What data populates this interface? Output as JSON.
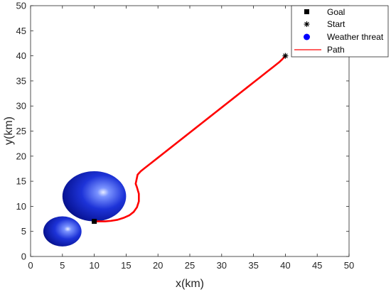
{
  "chart_data": {
    "type": "line",
    "title": "",
    "xlabel": "x(km)",
    "ylabel": "y(km)",
    "xlim": [
      0,
      50
    ],
    "ylim": [
      0,
      50
    ],
    "xticks": [
      "0",
      "5",
      "10",
      "15",
      "20",
      "25",
      "30",
      "35",
      "40",
      "45",
      "50"
    ],
    "yticks": [
      "0",
      "5",
      "10",
      "15",
      "20",
      "25",
      "30",
      "35",
      "40",
      "45",
      "50"
    ],
    "grid": false,
    "legend_position": "top-right",
    "legend": [
      {
        "label": "Goal",
        "marker": "square"
      },
      {
        "label": "Start",
        "marker": "asterisk"
      },
      {
        "label": "Weather threat",
        "marker": "circle"
      },
      {
        "label": "Path",
        "marker": "line"
      }
    ],
    "goal": {
      "x": 10,
      "y": 7
    },
    "start": {
      "x": 40,
      "y": 40
    },
    "threats": [
      {
        "cx": 10,
        "cy": 12,
        "r": 5
      },
      {
        "cx": 5,
        "cy": 5,
        "r": 3
      }
    ],
    "path": {
      "x": [
        40,
        39.5,
        39,
        38,
        37,
        36,
        35,
        34,
        33,
        32,
        31,
        30,
        29,
        28,
        27,
        26,
        25,
        24,
        23,
        22,
        21,
        20,
        19,
        18,
        17.3,
        16.8,
        16.5,
        16.7,
        17,
        17,
        16.7,
        16.2,
        15.5,
        14.6,
        13.6,
        12.6,
        11.7,
        11,
        10
      ],
      "y": [
        40,
        39.3,
        38.7,
        37.7,
        36.7,
        35.7,
        34.7,
        33.7,
        32.7,
        31.7,
        30.7,
        29.7,
        28.7,
        27.7,
        26.7,
        25.7,
        24.7,
        23.7,
        22.7,
        21.7,
        20.7,
        19.7,
        18.7,
        17.7,
        17.0,
        16.3,
        14.5,
        13.8,
        12.5,
        11.0,
        9.8,
        8.9,
        8.2,
        7.7,
        7.3,
        7.1,
        7.0,
        7.0,
        7.0
      ]
    },
    "colors": {
      "path": "#ff0000",
      "threat_core": "#5a78ff",
      "threat_edge": "#000a7a",
      "markers": "#000000",
      "legend_threat": "#0000ff"
    }
  }
}
